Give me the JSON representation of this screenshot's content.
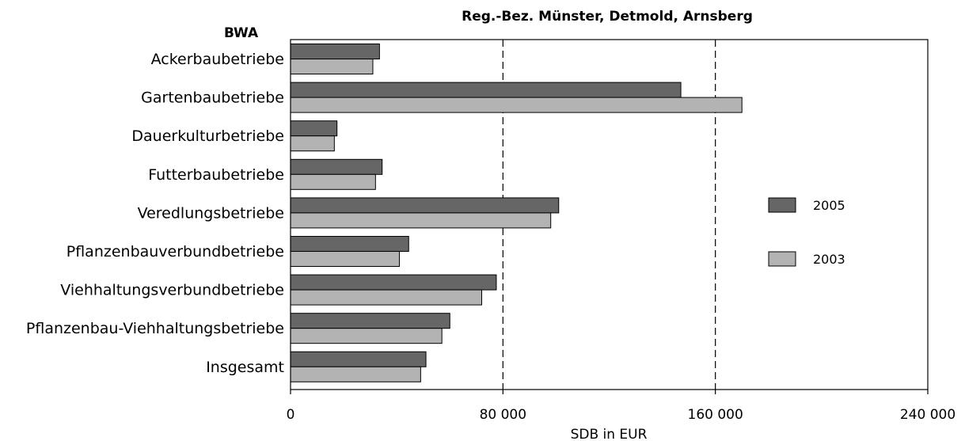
{
  "chart_data": {
    "type": "bar",
    "orientation": "horizontal",
    "title": "Reg.-Bez. Münster, Detmold, Arnsberg",
    "category_header": "BWA",
    "xlabel": "SDB in EUR",
    "xlim": [
      0,
      240000
    ],
    "x_ticks": [
      0,
      80000,
      160000,
      240000
    ],
    "x_tick_labels": [
      "0",
      "80 000",
      "160 000",
      "240 000"
    ],
    "grid": "vertical dashed at 80 000 and 160 000",
    "legend_position": "right",
    "categories": [
      "Ackerbaubetriebe",
      "Gartenbaubetriebe",
      "Dauerkulturbetriebe",
      "Futterbaubetriebe",
      "Veredlungsbetriebe",
      "Pflanzenbauverbundbetriebe",
      "Viehhaltungsverbundbetriebe",
      "Pflanzenbau-Viehhaltungsbetriebe",
      "Insgesamt"
    ],
    "series": [
      {
        "name": "2005",
        "color": "#666666",
        "values": [
          33500,
          147000,
          17500,
          34500,
          101000,
          44500,
          77500,
          60000,
          51000
        ]
      },
      {
        "name": "2003",
        "color": "#b3b3b3",
        "values": [
          31000,
          170000,
          16500,
          32000,
          98000,
          41000,
          72000,
          57000,
          49000
        ]
      }
    ]
  }
}
